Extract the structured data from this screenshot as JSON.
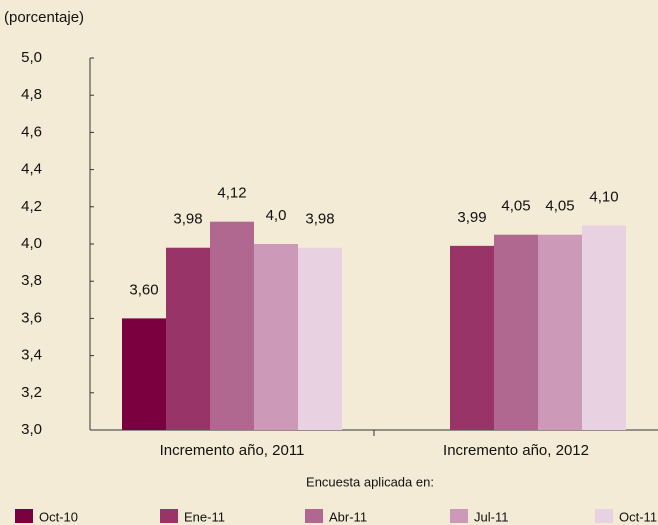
{
  "chart_data": {
    "type": "bar",
    "y_label": "(porcentaje)",
    "legend_title": "Encuesta aplicada en:",
    "categories": [
      "Incremento año, 2011",
      "Incremento año, 2012"
    ],
    "series": [
      {
        "name": "Oct-10",
        "color": "#7a0040",
        "values": [
          3.6,
          null
        ],
        "value_labels": [
          "3,60",
          null
        ]
      },
      {
        "name": "Ene-11",
        "color": "#983468",
        "values": [
          3.98,
          3.99
        ],
        "value_labels": [
          "3,98",
          "3,99"
        ]
      },
      {
        "name": "Abr-11",
        "color": "#b06890",
        "values": [
          4.12,
          4.05
        ],
        "value_labels": [
          "4,12",
          "4,05"
        ]
      },
      {
        "name": "Jul-11",
        "color": "#cc9ab8",
        "values": [
          4.0,
          4.05
        ],
        "value_labels": [
          "4,0",
          "4,05"
        ]
      },
      {
        "name": "Oct-11",
        "color": "#e8d2e2",
        "values": [
          3.98,
          4.1
        ],
        "value_labels": [
          "3,98",
          "4,10"
        ]
      }
    ],
    "ylim": [
      3.0,
      5.0
    ],
    "yticks": [
      {
        "value": 3.0,
        "label": "3,0"
      },
      {
        "value": 3.2,
        "label": "3,2"
      },
      {
        "value": 3.4,
        "label": "3,4"
      },
      {
        "value": 3.6,
        "label": "3,6"
      },
      {
        "value": 3.8,
        "label": "3,8"
      },
      {
        "value": 4.0,
        "label": "4,0"
      },
      {
        "value": 4.2,
        "label": "4,2"
      },
      {
        "value": 4.4,
        "label": "4,4"
      },
      {
        "value": 4.6,
        "label": "4,6"
      },
      {
        "value": 4.8,
        "label": "4,8"
      },
      {
        "value": 5.0,
        "label": "5,0"
      }
    ],
    "legend": "bottom"
  }
}
